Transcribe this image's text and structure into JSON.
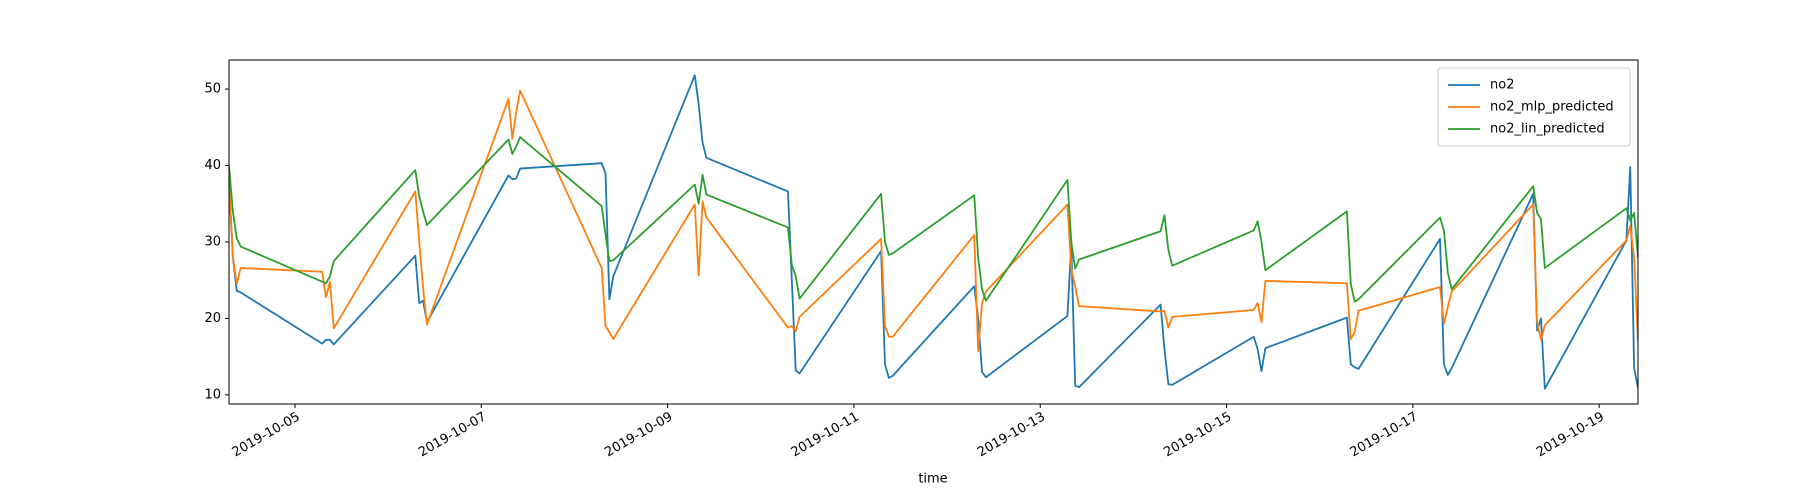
{
  "chart_data": {
    "type": "line",
    "x_label": "time",
    "x": [
      "2019-10-04 07:00",
      "2019-10-04 08:00",
      "2019-10-04 09:00",
      "2019-10-04 10:00",
      "2019-10-05 07:00",
      "2019-10-05 08:00",
      "2019-10-05 09:00",
      "2019-10-05 10:00",
      "2019-10-06 07:00",
      "2019-10-06 08:00",
      "2019-10-06 09:00",
      "2019-10-06 10:00",
      "2019-10-07 07:00",
      "2019-10-07 08:00",
      "2019-10-07 09:00",
      "2019-10-07 10:00",
      "2019-10-08 07:00",
      "2019-10-08 08:00",
      "2019-10-08 09:00",
      "2019-10-08 10:00",
      "2019-10-09 07:00",
      "2019-10-09 08:00",
      "2019-10-09 09:00",
      "2019-10-09 10:00",
      "2019-10-10 07:00",
      "2019-10-10 08:00",
      "2019-10-10 09:00",
      "2019-10-10 10:00",
      "2019-10-11 07:00",
      "2019-10-11 08:00",
      "2019-10-11 09:00",
      "2019-10-11 10:00",
      "2019-10-12 07:00",
      "2019-10-12 08:00",
      "2019-10-12 09:00",
      "2019-10-12 10:00",
      "2019-10-13 07:00",
      "2019-10-13 08:00",
      "2019-10-13 09:00",
      "2019-10-13 10:00",
      "2019-10-14 07:00",
      "2019-10-14 08:00",
      "2019-10-14 09:00",
      "2019-10-14 10:00",
      "2019-10-15 07:00",
      "2019-10-15 08:00",
      "2019-10-15 09:00",
      "2019-10-15 10:00",
      "2019-10-16 07:00",
      "2019-10-16 08:00",
      "2019-10-16 09:00",
      "2019-10-16 10:00",
      "2019-10-17 07:00",
      "2019-10-17 08:00",
      "2019-10-17 09:00",
      "2019-10-17 10:00",
      "2019-10-18 07:00",
      "2019-10-18 08:00",
      "2019-10-18 09:00",
      "2019-10-18 10:00",
      "2019-10-19 07:00",
      "2019-10-19 08:00",
      "2019-10-19 09:00",
      "2019-10-19 10:00"
    ],
    "series": [
      {
        "name": "no2",
        "color": "#1f77b4",
        "values": [
          38,
          28,
          23.6,
          23.4,
          16.7,
          17.2,
          17.2,
          16.6,
          28.2,
          22,
          22.3,
          19.5,
          38.7,
          38.2,
          38.3,
          39.6,
          40.3,
          39,
          22.5,
          25.5,
          51.8,
          48,
          43,
          41,
          36.6,
          25,
          13.2,
          12.8,
          28.8,
          14,
          12.2,
          12.5,
          24.2,
          20,
          13,
          12.3,
          20.3,
          29.6,
          11.2,
          11,
          21.8,
          16,
          11.4,
          11.3,
          17.6,
          16,
          13.1,
          16.1,
          20.1,
          14,
          13.6,
          13.4,
          30.4,
          14,
          12.6,
          13.5,
          36.3,
          18.4,
          20,
          10.8,
          30.2,
          39.8,
          13.5,
          10.9
        ]
      },
      {
        "name": "no2_mlp_predicted",
        "color": "#ff7f0e",
        "values": [
          38,
          28,
          24.5,
          26.6,
          26.1,
          22.8,
          24.8,
          18.7,
          36.6,
          30,
          24,
          19.2,
          48.7,
          43.5,
          47,
          49.8,
          26.6,
          19,
          18.2,
          17.3,
          34.9,
          25.6,
          35.3,
          33.2,
          18.8,
          19,
          18.3,
          20.2,
          30.4,
          19,
          17.6,
          17.6,
          30.9,
          15.7,
          22,
          23.5,
          34.9,
          26.5,
          24.2,
          21.6,
          20.9,
          21,
          18.8,
          20.2,
          21.1,
          22,
          19.5,
          24.9,
          24.6,
          17.3,
          18.2,
          21,
          24.1,
          19.3,
          21.5,
          23.5,
          34.9,
          19.5,
          17.2,
          19.1,
          30.2,
          32.1,
          28,
          17
        ]
      },
      {
        "name": "no2_lin_predicted",
        "color": "#2ca02c",
        "values": [
          40,
          34,
          30.5,
          29.4,
          24.8,
          24.6,
          25.5,
          27.5,
          39.4,
          36,
          34,
          32.2,
          43.4,
          41.5,
          42.5,
          43.7,
          34.7,
          31,
          27.5,
          27.6,
          37.5,
          35,
          38.8,
          36.2,
          31.9,
          27,
          25.5,
          22.6,
          36.3,
          30,
          28.3,
          28.5,
          36.1,
          28,
          23.8,
          22.3,
          38.1,
          30,
          26.5,
          27.7,
          31.4,
          33.5,
          29,
          26.9,
          31.5,
          32.7,
          30,
          26.3,
          34,
          24.5,
          22.2,
          22.5,
          33.2,
          31.5,
          26,
          23.8,
          37.3,
          33.8,
          33,
          26.6,
          34.4,
          32.8,
          33.8,
          28
        ]
      }
    ],
    "xlim": [
      "2019-10-04 07:00",
      "2019-10-19 10:00"
    ],
    "xticks": [
      "2019-10-05",
      "2019-10-07",
      "2019-10-09",
      "2019-10-11",
      "2019-10-13",
      "2019-10-15",
      "2019-10-17",
      "2019-10-19"
    ],
    "ylim": [
      8.8,
      53.8
    ],
    "yticks": [
      10,
      20,
      30,
      40,
      50
    ],
    "legend": "upper right"
  }
}
